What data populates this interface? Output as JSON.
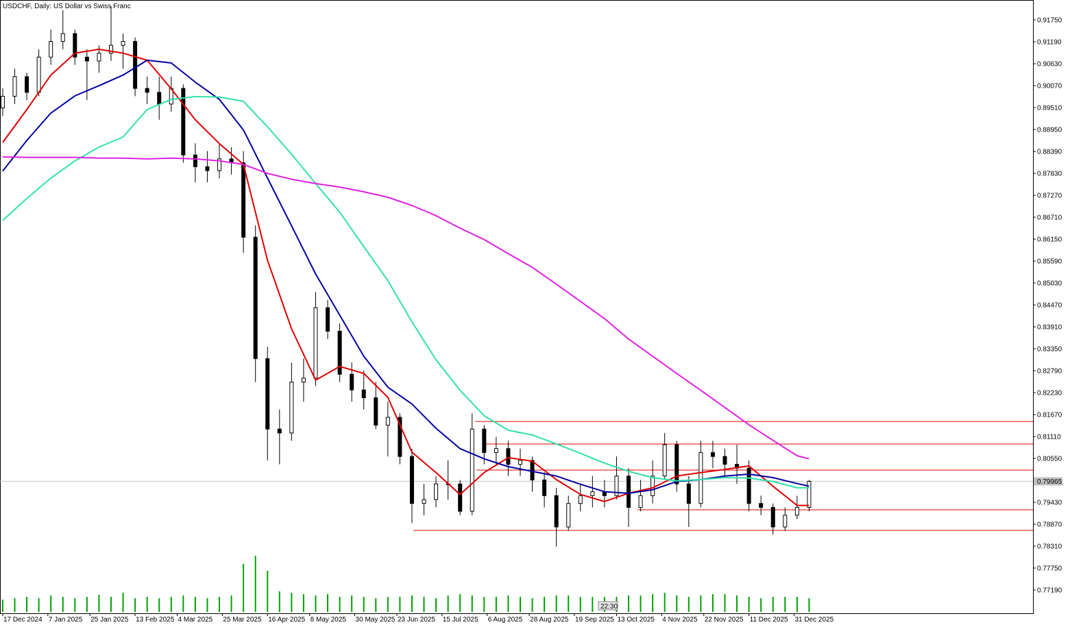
{
  "chart_data": {
    "type": "candlestick",
    "title": "USDCHF, Daily:  US Dollar vs Swiss Franc",
    "timer": "22:30",
    "last_price": 0.79965,
    "xlim": [
      -0.9,
      342.4
    ],
    "ylim": [
      0.76595,
      0.92258
    ],
    "vlim": [
      0,
      100
    ],
    "colors": {
      "up_fill": "#ffffff",
      "down_fill": "#000000",
      "wick": "#000000",
      "volume": "#00a000",
      "level": "#e00000",
      "last_price": "#c0c0c0"
    },
    "xticks": [
      {
        "value": 0,
        "label": "17 Dec 2024"
      },
      {
        "value": 15,
        "label": "7 Jan 2025"
      },
      {
        "value": 29,
        "label": "25 Jan 2025"
      },
      {
        "value": 44,
        "label": "13 Feb 2025"
      },
      {
        "value": 58,
        "label": "4 Mar 2025"
      },
      {
        "value": 73,
        "label": "25 Mar 2025"
      },
      {
        "value": 88,
        "label": "16 Apr 2025"
      },
      {
        "value": 102,
        "label": "8 May 2025"
      },
      {
        "value": 117,
        "label": "30 May 2025"
      },
      {
        "value": 131,
        "label": "23 Jun 2025"
      },
      {
        "value": 146,
        "label": "15 Jul 2025"
      },
      {
        "value": 161,
        "label": "6 Aug 2025"
      },
      {
        "value": 175,
        "label": "28 Aug 2025"
      },
      {
        "value": 190,
        "label": "19 Sep 2025"
      },
      {
        "value": 204,
        "label": "13 Oct 2025"
      },
      {
        "value": 219,
        "label": "4 Nov 2025"
      },
      {
        "value": 233,
        "label": "22 Nov 2025"
      },
      {
        "value": 248,
        "label": "11 Dec 2025"
      },
      {
        "value": 263,
        "label": "31 Dec 2025"
      }
    ],
    "yticks": [
      {
        "value": 0.9175,
        "label": "0.91750"
      },
      {
        "value": 0.9119,
        "label": "0.91190"
      },
      {
        "value": 0.9063,
        "label": "0.90630"
      },
      {
        "value": 0.9007,
        "label": "0.90070"
      },
      {
        "value": 0.8951,
        "label": "0.89510"
      },
      {
        "value": 0.8895,
        "label": "0.88950"
      },
      {
        "value": 0.8839,
        "label": "0.88390"
      },
      {
        "value": 0.8783,
        "label": "0.87830"
      },
      {
        "value": 0.8727,
        "label": "0.87270"
      },
      {
        "value": 0.8671,
        "label": "0.86710"
      },
      {
        "value": 0.8615,
        "label": "0.86150"
      },
      {
        "value": 0.8559,
        "label": "0.85590"
      },
      {
        "value": 0.8503,
        "label": "0.85030"
      },
      {
        "value": 0.8447,
        "label": "0.84470"
      },
      {
        "value": 0.8391,
        "label": "0.83910"
      },
      {
        "value": 0.8335,
        "label": "0.83350"
      },
      {
        "value": 0.8279,
        "label": "0.82790"
      },
      {
        "value": 0.8223,
        "label": "0.82230"
      },
      {
        "value": 0.8167,
        "label": "0.81670"
      },
      {
        "value": 0.8111,
        "label": "0.81110"
      },
      {
        "value": 0.8055,
        "label": "0.80550"
      },
      {
        "value": 0.7943,
        "label": "0.79430"
      },
      {
        "value": 0.7887,
        "label": "0.78870"
      },
      {
        "value": 0.7831,
        "label": "0.78310"
      },
      {
        "value": 0.7775,
        "label": "0.77750"
      },
      {
        "value": 0.7719,
        "label": "0.77190"
      }
    ],
    "x": [
      0,
      4,
      8,
      12,
      16,
      20,
      24,
      28,
      32,
      36,
      40,
      44,
      48,
      52,
      56,
      60,
      64,
      68,
      72,
      76,
      80,
      84,
      88,
      92,
      96,
      100,
      104,
      108,
      112,
      116,
      120,
      124,
      128,
      132,
      136,
      140,
      144,
      148,
      152,
      156,
      160,
      164,
      168,
      172,
      176,
      180,
      184,
      188,
      192,
      196,
      200,
      204,
      208,
      212,
      216,
      220,
      224,
      228,
      232,
      236,
      240,
      244,
      248,
      252,
      256,
      260,
      264,
      268
    ],
    "ohlc": [
      [
        0.895,
        0.9,
        0.893,
        0.898
      ],
      [
        0.898,
        0.905,
        0.896,
        0.903
      ],
      [
        0.903,
        0.904,
        0.897,
        0.899
      ],
      [
        0.899,
        0.91,
        0.898,
        0.908
      ],
      [
        0.908,
        0.915,
        0.906,
        0.912
      ],
      [
        0.912,
        0.92,
        0.91,
        0.914
      ],
      [
        0.914,
        0.915,
        0.906,
        0.908
      ],
      [
        0.908,
        0.91,
        0.897,
        0.907
      ],
      [
        0.907,
        0.911,
        0.904,
        0.909
      ],
      [
        0.909,
        0.921,
        0.907,
        0.911
      ],
      [
        0.911,
        0.914,
        0.905,
        0.912
      ],
      [
        0.912,
        0.913,
        0.898,
        0.9
      ],
      [
        0.9,
        0.903,
        0.896,
        0.899
      ],
      [
        0.899,
        0.903,
        0.892,
        0.896
      ],
      [
        0.896,
        0.903,
        0.894,
        0.9
      ],
      [
        0.9,
        0.901,
        0.881,
        0.883
      ],
      [
        0.883,
        0.886,
        0.876,
        0.88
      ],
      [
        0.88,
        0.884,
        0.876,
        0.879
      ],
      [
        0.879,
        0.886,
        0.877,
        0.882
      ],
      [
        0.882,
        0.885,
        0.878,
        0.881
      ],
      [
        0.881,
        0.884,
        0.858,
        0.862
      ],
      [
        0.862,
        0.865,
        0.825,
        0.831
      ],
      [
        0.831,
        0.834,
        0.805,
        0.813
      ],
      [
        0.813,
        0.818,
        0.804,
        0.812
      ],
      [
        0.812,
        0.83,
        0.81,
        0.825
      ],
      [
        0.825,
        0.831,
        0.82,
        0.826
      ],
      [
        0.826,
        0.848,
        0.824,
        0.844
      ],
      [
        0.844,
        0.846,
        0.836,
        0.838
      ],
      [
        0.838,
        0.84,
        0.825,
        0.827
      ],
      [
        0.827,
        0.83,
        0.82,
        0.823
      ],
      [
        0.823,
        0.828,
        0.818,
        0.821
      ],
      [
        0.821,
        0.825,
        0.813,
        0.814
      ],
      [
        0.814,
        0.82,
        0.806,
        0.816
      ],
      [
        0.816,
        0.817,
        0.804,
        0.806
      ],
      [
        0.806,
        0.808,
        0.789,
        0.794
      ],
      [
        0.794,
        0.799,
        0.791,
        0.795
      ],
      [
        0.795,
        0.801,
        0.793,
        0.799
      ],
      [
        0.799,
        0.805,
        0.795,
        0.799
      ],
      [
        0.799,
        0.8,
        0.791,
        0.792
      ],
      [
        0.792,
        0.817,
        0.791,
        0.813
      ],
      [
        0.813,
        0.814,
        0.804,
        0.807
      ],
      [
        0.807,
        0.811,
        0.804,
        0.808
      ],
      [
        0.808,
        0.81,
        0.801,
        0.804
      ],
      [
        0.804,
        0.808,
        0.801,
        0.805
      ],
      [
        0.805,
        0.806,
        0.797,
        0.8
      ],
      [
        0.8,
        0.802,
        0.793,
        0.796
      ],
      [
        0.796,
        0.798,
        0.783,
        0.788
      ],
      [
        0.788,
        0.796,
        0.787,
        0.794
      ],
      [
        0.794,
        0.799,
        0.792,
        0.796
      ],
      [
        0.796,
        0.801,
        0.793,
        0.797
      ],
      [
        0.797,
        0.8,
        0.793,
        0.796
      ],
      [
        0.796,
        0.806,
        0.795,
        0.801
      ],
      [
        0.801,
        0.803,
        0.788,
        0.793
      ],
      [
        0.793,
        0.8,
        0.792,
        0.796
      ],
      [
        0.796,
        0.805,
        0.794,
        0.801
      ],
      [
        0.801,
        0.812,
        0.8,
        0.809
      ],
      [
        0.809,
        0.81,
        0.797,
        0.799
      ],
      [
        0.799,
        0.801,
        0.788,
        0.794
      ],
      [
        0.794,
        0.81,
        0.793,
        0.807
      ],
      [
        0.807,
        0.81,
        0.803,
        0.806
      ],
      [
        0.806,
        0.808,
        0.801,
        0.804
      ],
      [
        0.804,
        0.809,
        0.799,
        0.803
      ],
      [
        0.803,
        0.805,
        0.792,
        0.794
      ],
      [
        0.794,
        0.796,
        0.791,
        0.793
      ],
      [
        0.793,
        0.794,
        0.786,
        0.788
      ],
      [
        0.788,
        0.793,
        0.787,
        0.791
      ],
      [
        0.791,
        0.796,
        0.79,
        0.793
      ],
      [
        0.793,
        0.8,
        0.792,
        0.79965
      ]
    ],
    "volume": [
      18,
      20,
      22,
      20,
      24,
      22,
      20,
      22,
      25,
      22,
      28,
      20,
      22,
      20,
      22,
      24,
      22,
      20,
      22,
      24,
      70,
      82,
      60,
      30,
      28,
      26,
      24,
      26,
      22,
      24,
      22,
      20,
      22,
      22,
      24,
      22,
      20,
      24,
      26,
      24,
      22,
      22,
      24,
      22,
      20,
      22,
      24,
      24,
      22,
      22,
      22,
      22,
      24,
      24,
      26,
      28,
      24,
      22,
      24,
      26,
      26,
      24,
      22,
      20,
      22,
      22,
      22,
      20
    ],
    "series": [
      {
        "color": "#e00000",
        "x": [
          0,
          8,
          16,
          24,
          32,
          40,
          48,
          56,
          64,
          72,
          80,
          88,
          96,
          104,
          112,
          120,
          128,
          136,
          144,
          152,
          160,
          168,
          176,
          184,
          192,
          200,
          208,
          216,
          224,
          232,
          240,
          248,
          256,
          264,
          268
        ],
        "values": [
          0.8862,
          0.8946,
          0.9034,
          0.909,
          0.91,
          0.909,
          0.9072,
          0.8999,
          0.892,
          0.8859,
          0.8806,
          0.8561,
          0.8386,
          0.8255,
          0.829,
          0.8272,
          0.8211,
          0.8071,
          0.8019,
          0.7963,
          0.8019,
          0.8057,
          0.8048,
          0.8001,
          0.7963,
          0.7945,
          0.7966,
          0.798,
          0.801,
          0.8019,
          0.8027,
          0.8036,
          0.7984,
          0.7935,
          0.7935
        ]
      },
      {
        "color": "#0000a0",
        "x": [
          0,
          8,
          16,
          24,
          32,
          40,
          48,
          56,
          64,
          72,
          80,
          88,
          96,
          104,
          112,
          120,
          128,
          136,
          144,
          152,
          160,
          168,
          176,
          184,
          192,
          200,
          208,
          216,
          224,
          232,
          240,
          248,
          256,
          264,
          268
        ],
        "values": [
          0.8789,
          0.8867,
          0.8937,
          0.8981,
          0.9007,
          0.9034,
          0.9072,
          0.9065,
          0.9016,
          0.8972,
          0.8894,
          0.8771,
          0.8649,
          0.8526,
          0.8421,
          0.8316,
          0.8237,
          0.8194,
          0.8132,
          0.808,
          0.8054,
          0.8034,
          0.8022,
          0.801,
          0.7989,
          0.797,
          0.7966,
          0.7975,
          0.7996,
          0.8001,
          0.801,
          0.8015,
          0.8006,
          0.7991,
          0.7984
        ]
      },
      {
        "color": "#30e0a8",
        "x": [
          0,
          8,
          16,
          24,
          32,
          40,
          48,
          56,
          64,
          72,
          80,
          88,
          96,
          104,
          112,
          120,
          128,
          136,
          144,
          152,
          160,
          168,
          176,
          184,
          192,
          200,
          208,
          216,
          224,
          232,
          240,
          248,
          256,
          264,
          268
        ],
        "values": [
          0.8663,
          0.8719,
          0.8771,
          0.8815,
          0.885,
          0.8876,
          0.8946,
          0.8972,
          0.8979,
          0.8978,
          0.8967,
          0.8902,
          0.8832,
          0.8757,
          0.8684,
          0.8596,
          0.8509,
          0.8404,
          0.8307,
          0.8229,
          0.8164,
          0.8127,
          0.8115,
          0.8092,
          0.8068,
          0.8043,
          0.8022,
          0.8006,
          0.7998,
          0.8001,
          0.8006,
          0.8005,
          0.7996,
          0.798,
          0.798
        ]
      },
      {
        "color": "#e020e0",
        "x": [
          0,
          8,
          16,
          24,
          32,
          40,
          48,
          56,
          64,
          72,
          80,
          88,
          96,
          104,
          112,
          120,
          128,
          136,
          144,
          152,
          160,
          168,
          176,
          184,
          192,
          200,
          208,
          216,
          224,
          232,
          240,
          248,
          256,
          264,
          268
        ],
        "values": [
          0.8825,
          0.8824,
          0.8824,
          0.8824,
          0.8822,
          0.8822,
          0.882,
          0.8822,
          0.882,
          0.8815,
          0.8806,
          0.8783,
          0.8768,
          0.8757,
          0.8748,
          0.8736,
          0.8722,
          0.8701,
          0.8675,
          0.8643,
          0.8614,
          0.8578,
          0.8543,
          0.85,
          0.8456,
          0.8412,
          0.836,
          0.8316,
          0.8272,
          0.8229,
          0.8185,
          0.8141,
          0.8101,
          0.8062,
          0.8054
        ]
      }
    ],
    "levels": [
      {
        "price": 0.81494,
        "from": 157
      },
      {
        "price": 0.80917,
        "from": 160
      },
      {
        "price": 0.80252,
        "from": 157.5
      },
      {
        "price": 0.79237,
        "from": 211
      },
      {
        "price": 0.78712,
        "from": 136.5
      }
    ]
  }
}
